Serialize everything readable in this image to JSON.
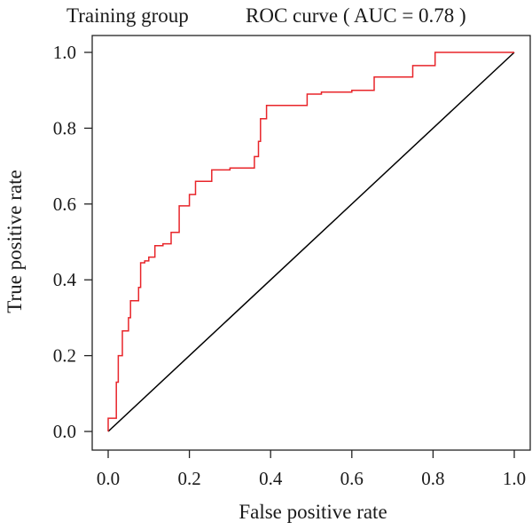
{
  "chart_data": {
    "type": "line",
    "title_left": "Training group",
    "title_right": "ROC curve ( AUC = 0.78 )",
    "xlabel": "False positive rate",
    "ylabel": "True positive rate",
    "xlim": [
      0,
      1
    ],
    "ylim": [
      0,
      1
    ],
    "x_ticks": [
      "0.0",
      "0.2",
      "0.4",
      "0.6",
      "0.8",
      "1.0"
    ],
    "y_ticks": [
      "0.0",
      "0.2",
      "0.4",
      "0.6",
      "0.8",
      "1.0"
    ],
    "grid": false,
    "series": [
      {
        "color": "#e8252a",
        "points": [
          [
            0.0,
            0.0
          ],
          [
            0.0,
            0.035
          ],
          [
            0.02,
            0.035
          ],
          [
            0.02,
            0.13
          ],
          [
            0.025,
            0.13
          ],
          [
            0.025,
            0.2
          ],
          [
            0.035,
            0.2
          ],
          [
            0.035,
            0.265
          ],
          [
            0.05,
            0.265
          ],
          [
            0.05,
            0.3
          ],
          [
            0.055,
            0.3
          ],
          [
            0.055,
            0.345
          ],
          [
            0.075,
            0.345
          ],
          [
            0.075,
            0.38
          ],
          [
            0.08,
            0.38
          ],
          [
            0.08,
            0.445
          ],
          [
            0.09,
            0.445
          ],
          [
            0.09,
            0.45
          ],
          [
            0.1,
            0.45
          ],
          [
            0.1,
            0.46
          ],
          [
            0.115,
            0.46
          ],
          [
            0.115,
            0.49
          ],
          [
            0.135,
            0.49
          ],
          [
            0.135,
            0.495
          ],
          [
            0.155,
            0.495
          ],
          [
            0.155,
            0.525
          ],
          [
            0.175,
            0.525
          ],
          [
            0.175,
            0.595
          ],
          [
            0.2,
            0.595
          ],
          [
            0.2,
            0.625
          ],
          [
            0.215,
            0.625
          ],
          [
            0.215,
            0.66
          ],
          [
            0.255,
            0.66
          ],
          [
            0.255,
            0.69
          ],
          [
            0.3,
            0.69
          ],
          [
            0.3,
            0.695
          ],
          [
            0.36,
            0.695
          ],
          [
            0.36,
            0.725
          ],
          [
            0.37,
            0.725
          ],
          [
            0.37,
            0.765
          ],
          [
            0.375,
            0.765
          ],
          [
            0.375,
            0.825
          ],
          [
            0.39,
            0.825
          ],
          [
            0.39,
            0.86
          ],
          [
            0.49,
            0.86
          ],
          [
            0.49,
            0.89
          ],
          [
            0.525,
            0.89
          ],
          [
            0.525,
            0.895
          ],
          [
            0.6,
            0.895
          ],
          [
            0.6,
            0.9
          ],
          [
            0.655,
            0.9
          ],
          [
            0.655,
            0.935
          ],
          [
            0.75,
            0.935
          ],
          [
            0.75,
            0.965
          ],
          [
            0.805,
            0.965
          ],
          [
            0.805,
            1.0
          ],
          [
            1.0,
            1.0
          ]
        ]
      }
    ],
    "reference_line": {
      "color": "#000000",
      "from": [
        0,
        0
      ],
      "to": [
        1,
        1
      ]
    }
  }
}
